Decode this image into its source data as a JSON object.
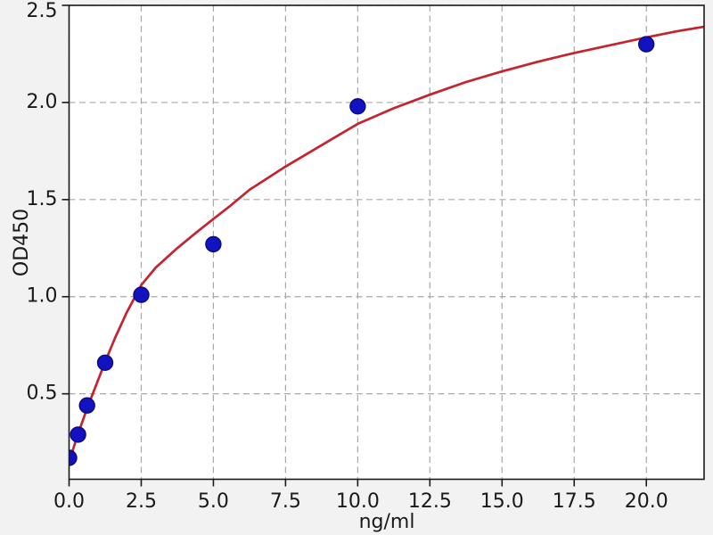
{
  "figure": {
    "background_color": "#f2f2f2",
    "plot_background_color": "#ffffff",
    "spine_color": "#1a1a1a",
    "grid_color": "#a8a8a8",
    "tick_label_color": "#1a1a1a"
  },
  "chart_data": {
    "type": "scatter",
    "title": "",
    "xlabel": "ng/ml",
    "ylabel": "OD450",
    "xlim": [
      0,
      22
    ],
    "ylim": [
      0.06,
      2.5
    ],
    "grid": true,
    "grid_style": "dashed",
    "legend": false,
    "x_ticks": [
      0.0,
      2.5,
      5.0,
      7.5,
      10.0,
      12.5,
      15.0,
      17.5,
      20.0
    ],
    "x_tick_labels": [
      "0.0",
      "2.5",
      "5.0",
      "7.5",
      "10.0",
      "12.5",
      "15.0",
      "17.5",
      "20.0"
    ],
    "y_ticks": [
      0.5,
      1.0,
      1.5,
      2.0,
      2.5
    ],
    "y_tick_labels": [
      "0.5",
      "1.0",
      "1.5",
      "2.0",
      "2.5"
    ],
    "series": [
      {
        "name": "fit-curve",
        "kind": "line",
        "color": "#c32430",
        "line_width": 2.7,
        "points": [
          [
            0,
            0.148
          ],
          [
            0.16,
            0.225
          ],
          [
            0.313,
            0.295
          ],
          [
            0.47,
            0.36
          ],
          [
            0.625,
            0.425
          ],
          [
            0.9,
            0.53
          ],
          [
            1.25,
            0.665
          ],
          [
            1.6,
            0.79
          ],
          [
            2.0,
            0.92
          ],
          [
            2.5,
            1.06
          ],
          [
            3.0,
            1.15
          ],
          [
            3.75,
            1.25
          ],
          [
            4.4,
            1.33
          ],
          [
            5.0,
            1.4
          ],
          [
            5.6,
            1.47
          ],
          [
            6.25,
            1.55
          ],
          [
            7.5,
            1.67
          ],
          [
            8.75,
            1.78
          ],
          [
            10.0,
            1.89
          ],
          [
            11.25,
            1.97
          ],
          [
            12.5,
            2.04
          ],
          [
            13.75,
            2.105
          ],
          [
            15.0,
            2.16
          ],
          [
            16.25,
            2.21
          ],
          [
            17.5,
            2.255
          ],
          [
            18.75,
            2.295
          ],
          [
            20.0,
            2.335
          ],
          [
            21.0,
            2.365
          ],
          [
            22.0,
            2.39
          ]
        ]
      },
      {
        "name": "standard-points",
        "kind": "scatter",
        "color": "#1212c0",
        "edge_color": "#0a0a7e",
        "marker_radius": 8.5,
        "points": [
          [
            0,
            0.17
          ],
          [
            0.313,
            0.29
          ],
          [
            0.625,
            0.44
          ],
          [
            1.25,
            0.66
          ],
          [
            2.5,
            1.01
          ],
          [
            5.0,
            1.27
          ],
          [
            10.0,
            1.98
          ],
          [
            20.0,
            2.3
          ]
        ]
      }
    ]
  }
}
